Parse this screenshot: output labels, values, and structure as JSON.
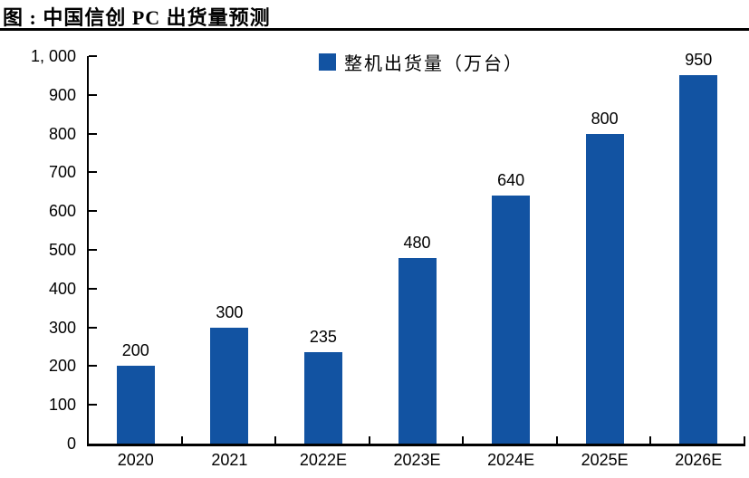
{
  "header": {
    "title": "图 : 中国信创 PC 出货量预测"
  },
  "legend": {
    "label": "整机出货量（万台）"
  },
  "colors": {
    "bar": "#1253A2",
    "axis": "#000000",
    "text": "#000000",
    "background": "#FFFFFF"
  },
  "chart_data": {
    "type": "bar",
    "title": "图 : 中国信创 PC 出货量预测",
    "categories": [
      "2020",
      "2021",
      "2022E",
      "2023E",
      "2024E",
      "2025E",
      "2026E"
    ],
    "values": [
      200,
      300,
      235,
      480,
      640,
      800,
      950
    ],
    "series_name": "整机出货量（万台）",
    "xlabel": "",
    "ylabel": "",
    "ylim": [
      0,
      1000
    ],
    "ytick_step": 100,
    "ytick_labels": [
      "0",
      "100",
      "200",
      "300",
      "400",
      "500",
      "600",
      "700",
      "800",
      "900",
      "1, 000"
    ],
    "grid": false,
    "legend_position": "top-center",
    "data_labels": true
  }
}
